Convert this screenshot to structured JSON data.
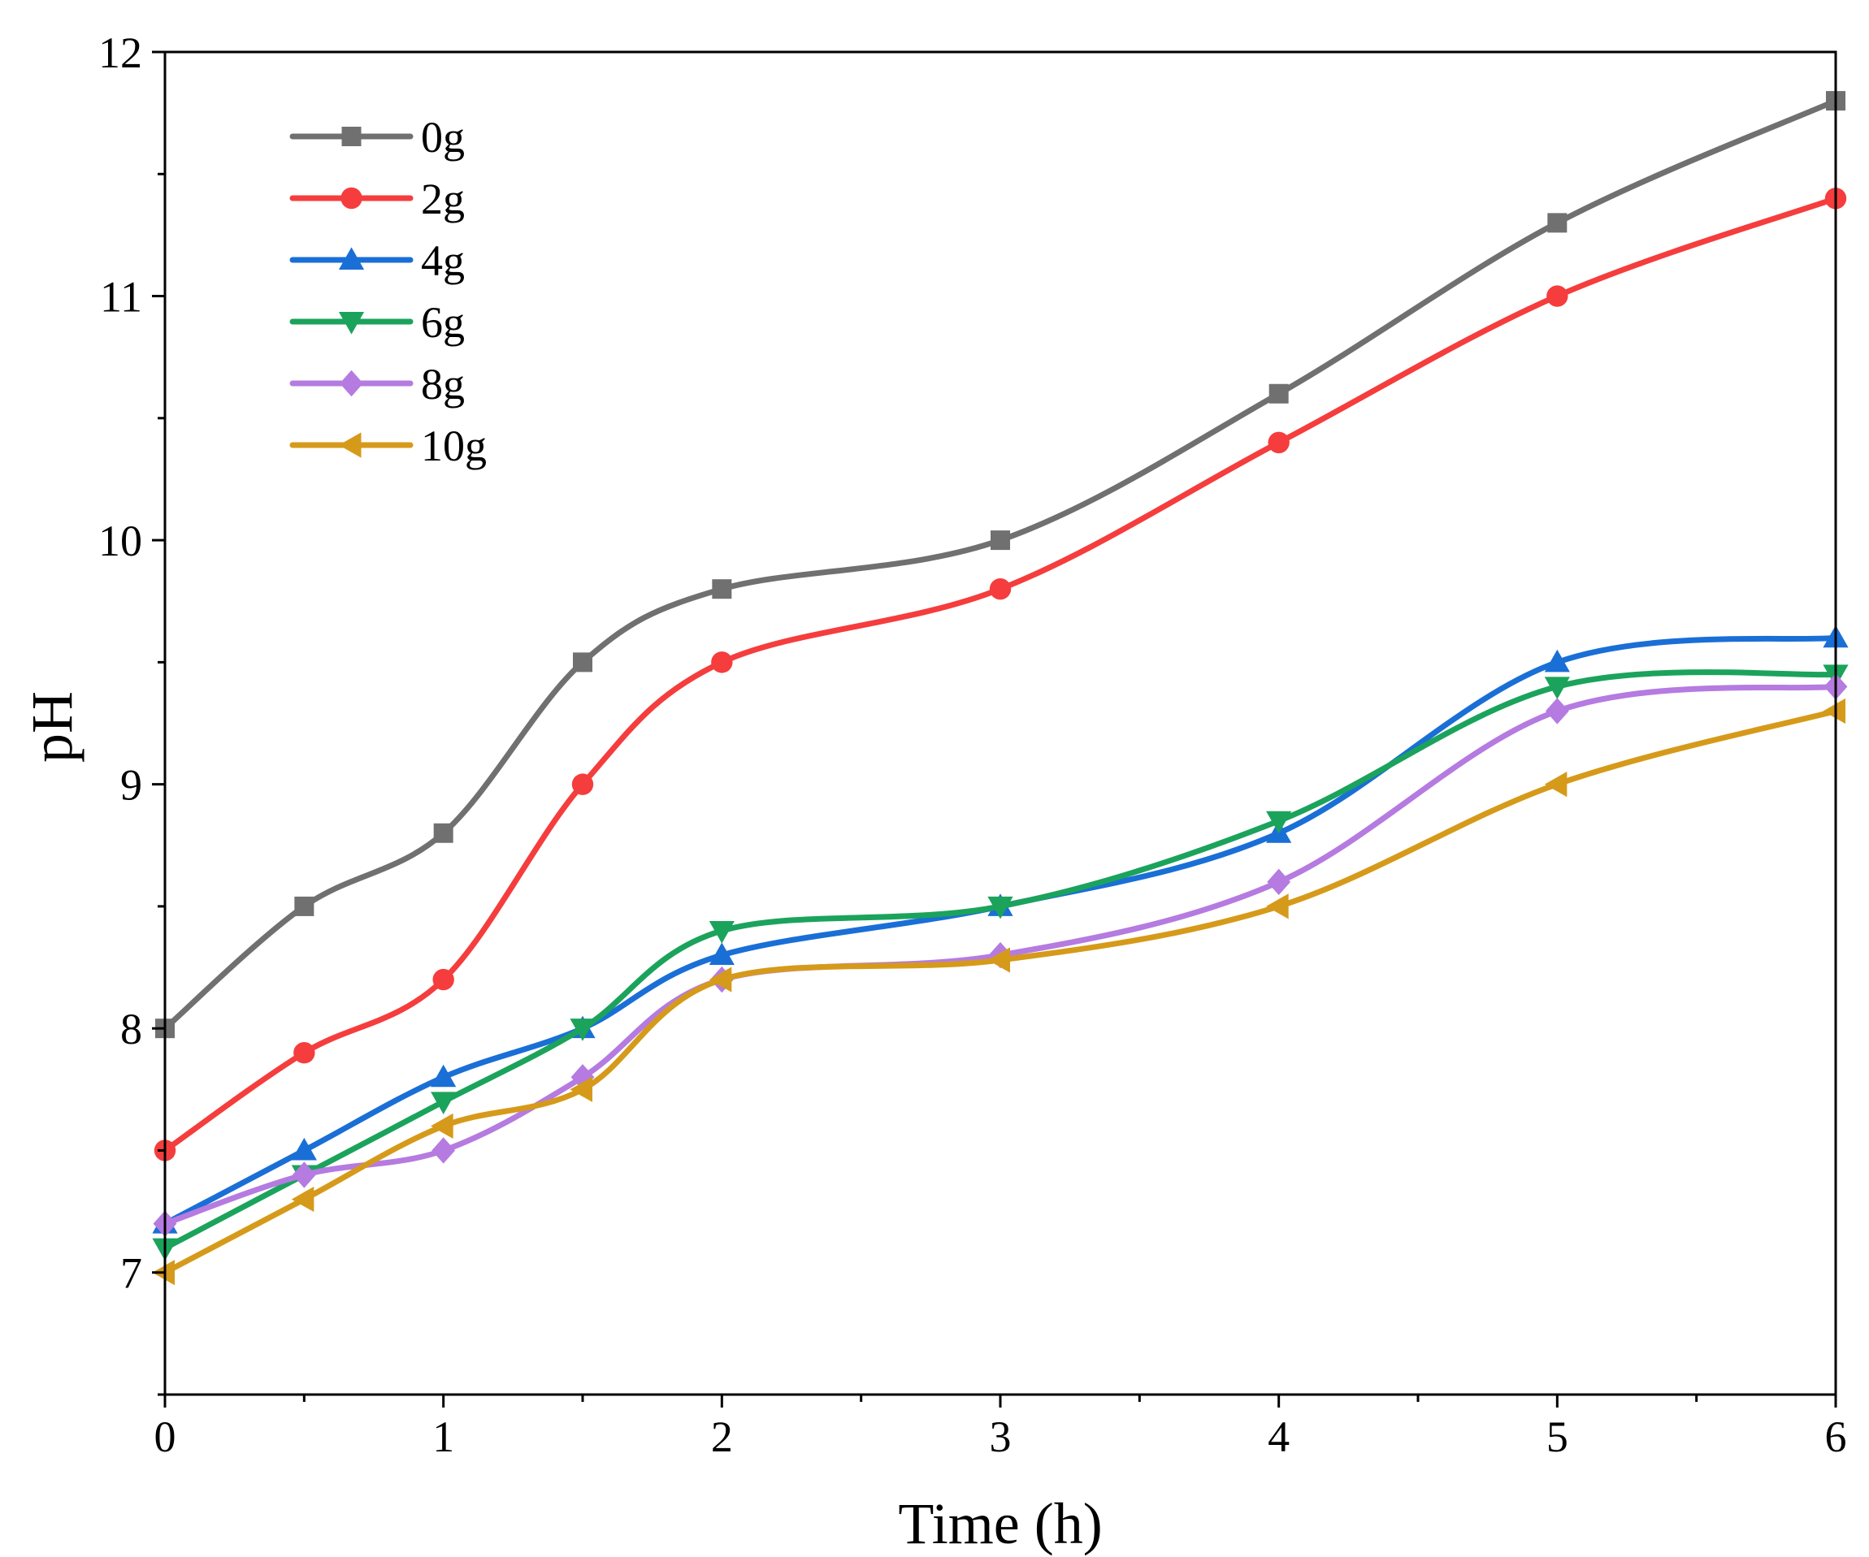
{
  "chart_data": {
    "type": "line",
    "xlabel": "Time (h)",
    "ylabel": "pH",
    "xlim": [
      0,
      6
    ],
    "ylim": [
      6.5,
      12
    ],
    "xticks": [
      0,
      1,
      2,
      3,
      4,
      5,
      6
    ],
    "yticks": [
      7,
      8,
      9,
      10,
      11,
      12
    ],
    "grid": false,
    "legend_position": "top-left",
    "x": [
      0,
      0.5,
      1,
      1.5,
      2,
      3,
      4,
      5,
      6
    ],
    "series": [
      {
        "name": "0g",
        "color": "#707070",
        "marker": "square",
        "values": [
          8.0,
          8.5,
          8.8,
          9.5,
          9.8,
          10.0,
          10.6,
          11.3,
          11.8
        ]
      },
      {
        "name": "2g",
        "color": "#f53d3d",
        "marker": "circle",
        "values": [
          7.5,
          7.9,
          8.2,
          9.0,
          9.5,
          9.8,
          10.4,
          11.0,
          11.4
        ]
      },
      {
        "name": "4g",
        "color": "#1a6fd6",
        "marker": "triangle-up",
        "values": [
          7.2,
          7.5,
          7.8,
          8.0,
          8.3,
          8.5,
          8.8,
          9.5,
          9.6
        ]
      },
      {
        "name": "6g",
        "color": "#1ba35c",
        "marker": "triangle-down",
        "values": [
          7.1,
          7.4,
          7.7,
          8.0,
          8.4,
          8.5,
          8.85,
          9.4,
          9.45
        ]
      },
      {
        "name": "8g",
        "color": "#b57be0",
        "marker": "diamond",
        "values": [
          7.2,
          7.4,
          7.5,
          7.8,
          8.2,
          8.3,
          8.6,
          9.3,
          9.4
        ]
      },
      {
        "name": "10g",
        "color": "#d69a1a",
        "marker": "triangle-left",
        "values": [
          7.0,
          7.3,
          7.6,
          7.75,
          8.2,
          8.28,
          8.5,
          9.0,
          9.3
        ]
      }
    ]
  }
}
